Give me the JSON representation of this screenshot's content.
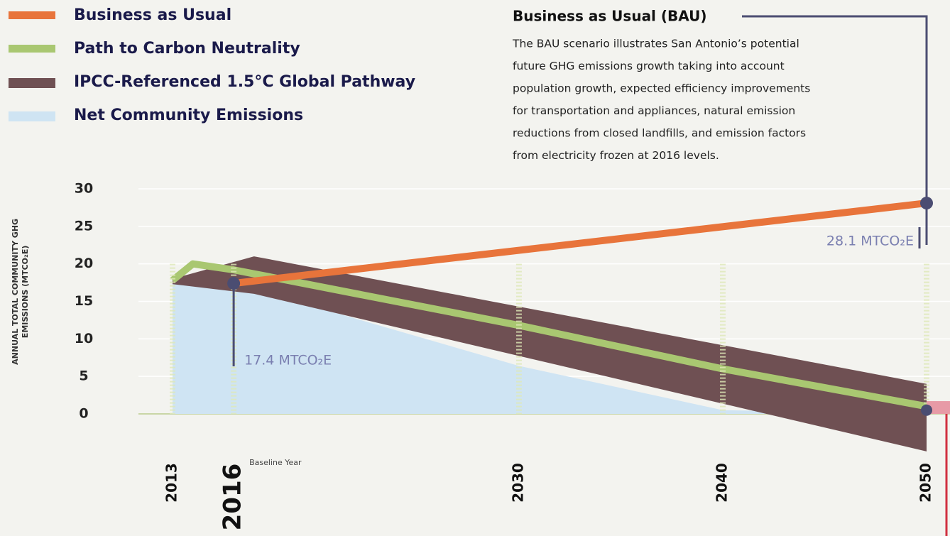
{
  "chart_data": {
    "type": "line",
    "ylabel": [
      "ANNUAL TOTAL COMMUNITY GHG",
      "EMISSIONS (MTCO₂E)"
    ],
    "xlim": [
      2013,
      2050
    ],
    "xticks": [
      2013,
      2016,
      2030,
      2040,
      2050
    ],
    "ylim": [
      -6,
      31
    ],
    "yticks": [
      0,
      5,
      10,
      15,
      20,
      25,
      30
    ],
    "grid": true,
    "legend": "top-left",
    "series": [
      {
        "name": "Business as Usual",
        "type": "line",
        "color": "#e8743b",
        "x": [
          2016,
          2050
        ],
        "values": [
          17.4,
          28.1
        ],
        "value_labels": [
          "17.4 MTCO₂E",
          "28.1 MTCO₂E"
        ]
      },
      {
        "name": "Path to Carbon Neutrality",
        "type": "line",
        "color": "#a9c771",
        "x": [
          2013,
          2014,
          2016,
          2030,
          2040,
          2050
        ],
        "values": [
          17.8,
          20,
          19.2,
          11.8,
          6,
          1
        ]
      },
      {
        "name": "IPCC-Referenced 1.5°C Global Pathway",
        "type": "band",
        "color": "#6f5053",
        "x": [
          2013,
          2017,
          2050
        ],
        "high": [
          18,
          21,
          4
        ],
        "low": [
          17.3,
          16,
          -5
        ]
      },
      {
        "name": "Net Community Emissions",
        "type": "area",
        "color": "#cfe4f3",
        "x": [
          2013,
          2016,
          2030,
          2040,
          2050
        ],
        "values": [
          17.8,
          17.4,
          6.4,
          0.5,
          0
        ]
      }
    ],
    "annotations": {
      "baseline": "Baseline Year",
      "bau_title": "Business as Usual (BAU)",
      "bau_text": [
        "The BAU scenario illustrates San Antonio’s potential",
        "future GHG emissions growth taking into account",
        "population growth, expected efficiency improvements",
        "for transportation and appliances, natural emission",
        "reductions from closed landfills, and emission factors",
        "from electricity frozen at 2016 levels."
      ]
    }
  }
}
